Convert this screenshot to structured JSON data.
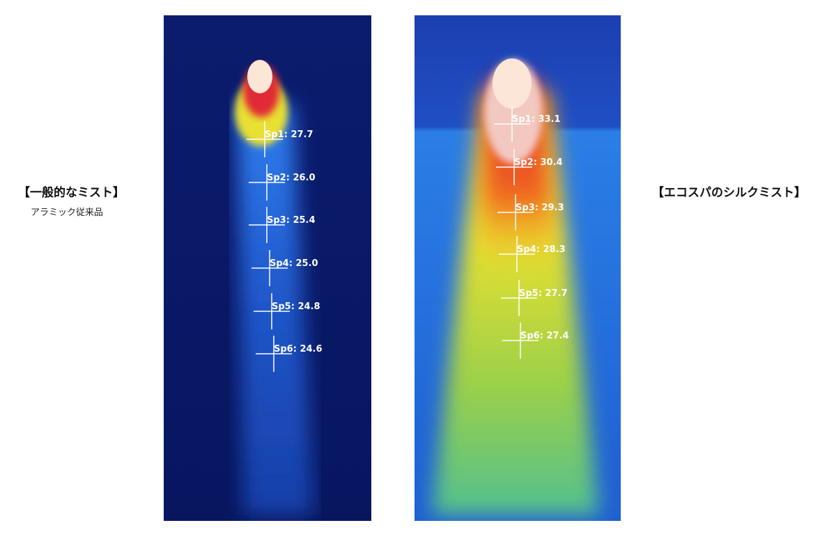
{
  "left": {
    "title": "【一般的なミスト】",
    "subtitle": "アラミック従来品",
    "spots": [
      "Sp1: 27.7",
      "Sp2: 26.0",
      "Sp3: 25.4",
      "Sp4: 25.0",
      "Sp5: 24.8",
      "Sp6: 24.6"
    ]
  },
  "right": {
    "title": "【エコスパのシルクミスト】",
    "spots": [
      "Sp1: 33.1",
      "Sp2: 30.4",
      "Sp3: 29.3",
      "Sp4: 28.3",
      "Sp5: 27.7",
      "Sp6: 27.4"
    ]
  }
}
